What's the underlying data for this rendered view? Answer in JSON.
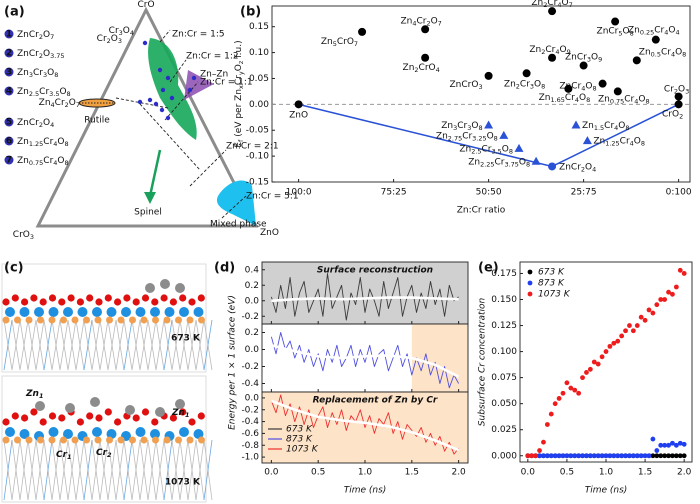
{
  "panel_labels": [
    "(a)",
    "(b)",
    "(c)",
    "(d)",
    "(e)"
  ],
  "ternary": {
    "vertices": [
      "CrO",
      "CrO3",
      "ZnO"
    ],
    "legend": [
      {
        "number": "1",
        "label": "ZnCr2O7"
      },
      {
        "number": "2",
        "label": "ZnCr2O3.75"
      },
      {
        "number": "3",
        "label": "Zn3Cr3O8"
      },
      {
        "number": "4",
        "label": "Zn2.5Cr3.5O8"
      },
      {
        "number": "5",
        "label": "ZnCr2O4"
      },
      {
        "number": "6",
        "label": "Zn1.25Cr4O8"
      },
      {
        "number": "7",
        "label": "Zn0.75Cr4O8"
      }
    ],
    "labels": [
      {
        "text": "Cr2O3",
        "color": "#222222"
      },
      {
        "text": "Cr3O4",
        "color": "#2c2cc8"
      },
      {
        "text": "Zn:Cr = 1:5",
        "color": "#222222"
      },
      {
        "text": "Zn:Cr = 1:2",
        "color": "#222222"
      },
      {
        "text": "Zn–Zn",
        "color": "#8a4bb0"
      },
      {
        "text": "Zn:Cr = 1:1",
        "color": "#222222"
      },
      {
        "text": "Zn4Cr2O7",
        "color": "#222222"
      },
      {
        "text": "Rutile",
        "color": "#e08a2c"
      },
      {
        "text": "Spinel",
        "color": "#19a05a"
      },
      {
        "text": "Zn:Cr = 2:1",
        "color": "#222222"
      },
      {
        "text": "Zn:Cr = 5:1",
        "color": "#222222"
      },
      {
        "text": "Mixed phase",
        "color": "#1ba6d8"
      }
    ]
  },
  "structures": {
    "temperatures": [
      "673 K",
      "1073 K"
    ],
    "atom_labels": [
      "Zn1",
      "Zn1",
      "Cr1",
      "Cr2"
    ]
  },
  "chart_data": [
    {
      "type": "scatter",
      "x_label": "Zn:Cr ratio",
      "y_label": "Ef (eV per ZnxCryOz f.u.)",
      "xlim": [
        -0.07,
        1.03
      ],
      "xticks": [
        {
          "value": 0,
          "label": "100:0"
        },
        {
          "value": 0.25,
          "label": "75:25"
        },
        {
          "value": 0.5,
          "label": "50:50"
        },
        {
          "value": 0.75,
          "label": "25:75"
        },
        {
          "value": 1,
          "label": "0:100"
        }
      ],
      "ylim": [
        -0.15,
        0.19
      ],
      "yticks": [
        0.15,
        {
          "value": 0.1,
          "label": "0.10"
        },
        0.05,
        {
          "value": 0,
          "label": "0.00"
        },
        -0.05,
        {
          "value": -0.1,
          "label": "-0.10"
        },
        -0.15
      ],
      "series": [
        {
          "marker": "line",
          "color": "#2a52d6",
          "x": [
            0,
            0.667,
            1
          ],
          "values": [
            0,
            -0.12,
            0
          ]
        },
        {
          "marker": "circle",
          "color": "#000000",
          "x": [
            0,
            0.167,
            0.333,
            0.333,
            0.5,
            0.667,
            0.833,
            0.94,
            0.667,
            0.6,
            0.75,
            0.89,
            0.8,
            0.71,
            0.84,
            1.0,
            1.0
          ],
          "values": [
            0,
            0.14,
            0.145,
            0.09,
            0.055,
            0.18,
            0.16,
            0.125,
            0.09,
            0.06,
            0.075,
            0.085,
            0.04,
            0.03,
            0.025,
            0.015,
            0.0
          ],
          "labels": [
            "ZnO",
            "Zn5CrO7",
            "Zn4Cr2O7",
            "Zn2CrO4",
            "ZnCrO3",
            "Zn2Cr4O7",
            "ZnCr5O8",
            "Zn0.25Cr4O4",
            "Zn2Cr4O9",
            "Zn2Cr3O8",
            "ZnCr3O9",
            "Zn0.5Cr4O8",
            "ZnCr4O8",
            "Zn1.65Cr4O8",
            "Zn0.75Cr4O8",
            "Cr2O3",
            "CrO2"
          ]
        },
        {
          "marker": "triangle",
          "color": "#2a52d6",
          "x": [
            0.5,
            0.54,
            0.58,
            0.625,
            0.73,
            0.76
          ],
          "values": [
            -0.04,
            -0.06,
            -0.085,
            -0.11,
            -0.04,
            -0.07
          ],
          "labels": [
            "Zn3Cr3O8",
            "Zn2.75Cr3.25O8",
            "Zn2.5Cr3.5O8",
            "Zn2.25Cr3.75O8",
            "Zn1.5Cr4O8",
            "Zn1.25Cr4O8"
          ]
        },
        {
          "marker": "circle",
          "color": "#2a52d6",
          "x": [
            0.667
          ],
          "values": [
            -0.12
          ],
          "labels": [
            "ZnCr2O4"
          ]
        }
      ]
    },
    {
      "type": "line",
      "x_label": "Time (ns)",
      "y_label": "Energy per 1 × 1 surface (eV)",
      "xlim": [
        -0.1,
        2.1
      ],
      "xticks": [
        {
          "value": 0,
          "label": "0.0"
        },
        0.5,
        {
          "value": 1,
          "label": "1.0"
        },
        1.5,
        {
          "value": 2,
          "label": "2.0"
        }
      ],
      "x": [
        0,
        0.05,
        0.1,
        0.15,
        0.2,
        0.25,
        0.3,
        0.35,
        0.4,
        0.45,
        0.5,
        0.55,
        0.6,
        0.65,
        0.7,
        0.75,
        0.8,
        0.85,
        0.9,
        0.95,
        1.0,
        1.05,
        1.1,
        1.15,
        1.2,
        1.25,
        1.3,
        1.35,
        1.4,
        1.45,
        1.5,
        1.55,
        1.6,
        1.65,
        1.7,
        1.75,
        1.8,
        1.85,
        1.9,
        1.95,
        2.0
      ],
      "subplots": [
        {
          "ylim": [
            -0.3,
            0.5
          ],
          "yticks": [
            0.4,
            0.2,
            {
              "value": 0,
              "label": "0.0"
            },
            -0.2
          ],
          "shade": {
            "from": -0.1,
            "to": 2.1,
            "color": "#d0d0d0"
          },
          "annotation": {
            "text": "Surface reconstruction",
            "color": "#8a8a8a"
          },
          "series": [
            {
              "name": "673 K",
              "color": "#3a3a3a",
              "values": [
                0.05,
                -0.15,
                0.2,
                -0.1,
                0.3,
                -0.2,
                0.1,
                0.25,
                -0.15,
                0.0,
                0.15,
                -0.2,
                0.35,
                -0.1,
                0.05,
                0.2,
                -0.25,
                0.1,
                -0.05,
                0.3,
                -0.15,
                0.15,
                0.0,
                -0.2,
                0.25,
                -0.1,
                0.1,
                0.3,
                -0.2,
                0.05,
                0.2,
                -0.15,
                0.1,
                -0.1,
                0.25,
                -0.05,
                0.15,
                -0.2,
                0.2,
                0.0,
                0.05
              ]
            },
            {
              "color": "#ffffff",
              "x": [
                0,
                0.25,
                0.5,
                0.75,
                1.0,
                1.25,
                1.5,
                1.75,
                2.0
              ],
              "values": [
                0,
                0.02,
                0.03,
                0.02,
                0.03,
                0.04,
                0.04,
                0.03,
                0.02
              ]
            }
          ]
        },
        {
          "ylim": [
            -0.5,
            0.3
          ],
          "yticks": [
            0.2,
            {
              "value": 0,
              "label": "0.0"
            },
            -0.2,
            -0.4
          ],
          "shade": {
            "from": 1.5,
            "to": 2.1,
            "color": "#fde3c8"
          },
          "series": [
            {
              "name": "873 K",
              "color": "#5050e0",
              "values": [
                0.15,
                -0.05,
                0.2,
                0.0,
                0.1,
                -0.1,
                0.05,
                -0.15,
                0.0,
                -0.2,
                -0.05,
                -0.25,
                0.0,
                -0.15,
                0.05,
                -0.2,
                -0.1,
                0.05,
                -0.2,
                0.0,
                -0.15,
                0.05,
                -0.2,
                -0.05,
                0.0,
                -0.25,
                -0.1,
                0.05,
                -0.2,
                -0.05,
                -0.3,
                -0.1,
                -0.25,
                -0.05,
                -0.3,
                -0.15,
                -0.4,
                -0.2,
                -0.45,
                -0.3,
                -0.4
              ]
            },
            {
              "color": "#ffffff",
              "x": [
                0,
                0.25,
                0.5,
                0.75,
                1.0,
                1.25,
                1.5,
                1.75,
                2.0
              ],
              "values": [
                0.05,
                -0.02,
                -0.08,
                -0.1,
                -0.08,
                -0.07,
                -0.1,
                -0.18,
                -0.32
              ]
            }
          ]
        },
        {
          "ylim": [
            -1.1,
            0.1
          ],
          "yticks": [
            {
              "value": 0,
              "label": "0.0"
            },
            -0.2,
            -0.4,
            -0.6,
            -0.8,
            {
              "value": -1,
              "label": "-1.0"
            }
          ],
          "shade": {
            "from": -0.1,
            "to": 2.1,
            "color": "#fde3c8"
          },
          "annotation": {
            "text": "Replacement of Zn by Cr",
            "color": "#f08a3c"
          },
          "series": [
            {
              "name": "1073 K",
              "color": "#ee3030",
              "values": [
                -0.05,
                -0.25,
                0.05,
                -0.3,
                -0.1,
                -0.4,
                -0.15,
                -0.45,
                -0.2,
                -0.5,
                -0.3,
                -0.15,
                -0.5,
                -0.25,
                -0.45,
                -0.2,
                -0.55,
                -0.3,
                -0.4,
                -0.2,
                -0.5,
                -0.3,
                -0.6,
                -0.35,
                -0.45,
                -0.25,
                -0.6,
                -0.4,
                -0.7,
                -0.45,
                -0.55,
                -0.65,
                -0.5,
                -0.75,
                -0.6,
                -0.8,
                -0.65,
                -0.9,
                -0.75,
                -0.95,
                -0.85
              ]
            },
            {
              "color": "#ffffff",
              "x": [
                0,
                0.25,
                0.5,
                0.75,
                1.0,
                1.25,
                1.5,
                1.75,
                2.0
              ],
              "values": [
                -0.05,
                -0.2,
                -0.32,
                -0.38,
                -0.42,
                -0.48,
                -0.58,
                -0.72,
                -0.88
              ]
            }
          ]
        }
      ]
    },
    {
      "type": "scatter",
      "x_label": "Time (ns)",
      "y_label": "Subsurface Cr concentration",
      "xlim": [
        -0.1,
        2.1
      ],
      "xticks": [
        {
          "value": 0,
          "label": "0.0"
        },
        0.5,
        {
          "value": 1,
          "label": "1.0"
        },
        1.5,
        {
          "value": 2,
          "label": "2.0"
        }
      ],
      "ylim": [
        -0.006,
        0.186
      ],
      "yticks": [
        {
          "value": 0,
          "label": "0.000"
        },
        0.025,
        {
          "value": 0.05,
          "label": "0.050"
        },
        0.075,
        {
          "value": 0.1,
          "label": "0.100"
        },
        0.125,
        {
          "value": 0.15,
          "label": "0.150"
        },
        0.175
      ],
      "legend": "upper left",
      "x": [
        0,
        0.05,
        0.1,
        0.15,
        0.2,
        0.25,
        0.3,
        0.35,
        0.4,
        0.45,
        0.5,
        0.55,
        0.6,
        0.65,
        0.7,
        0.75,
        0.8,
        0.85,
        0.9,
        0.95,
        1.0,
        1.05,
        1.1,
        1.15,
        1.2,
        1.25,
        1.3,
        1.35,
        1.4,
        1.45,
        1.5,
        1.55,
        1.6,
        1.65,
        1.7,
        1.75,
        1.8,
        1.85,
        1.9,
        1.95,
        2.0
      ],
      "series": [
        {
          "name": "673 K",
          "marker": "circle",
          "color": "#000000",
          "values": [
            0,
            0,
            0,
            0,
            0,
            0,
            0,
            0,
            0,
            0,
            0,
            0,
            0,
            0,
            0,
            0,
            0,
            0,
            0,
            0,
            0,
            0,
            0,
            0,
            0,
            0,
            0,
            0,
            0,
            0,
            0,
            0,
            0,
            0,
            0,
            0,
            0,
            0,
            0,
            0,
            0
          ]
        },
        {
          "name": "873 K",
          "marker": "circle",
          "color": "#1f3ff0",
          "values": [
            0,
            0,
            0,
            0,
            0,
            0,
            0,
            0,
            0,
            0,
            0,
            0,
            0,
            0,
            0,
            0,
            0,
            0,
            0,
            0,
            0,
            0,
            0,
            0,
            0,
            0,
            0,
            0,
            0,
            0,
            0,
            0,
            0.016,
            0.005,
            0.01,
            0.01,
            0.01,
            0.012,
            0.01,
            0.012,
            0.011
          ]
        },
        {
          "name": "1073 K",
          "marker": "circle",
          "color": "#ee1c1c",
          "values": [
            0,
            0,
            0,
            0.005,
            0.013,
            0.03,
            0.04,
            0.05,
            0.055,
            0.06,
            0.07,
            0.065,
            0.063,
            0.06,
            0.075,
            0.08,
            0.083,
            0.09,
            0.088,
            0.095,
            0.1,
            0.105,
            0.108,
            0.11,
            0.115,
            0.12,
            0.125,
            0.12,
            0.125,
            0.133,
            0.13,
            0.14,
            0.137,
            0.145,
            0.15,
            0.15,
            0.157,
            0.155,
            0.162,
            0.178,
            0.175
          ]
        }
      ]
    }
  ]
}
